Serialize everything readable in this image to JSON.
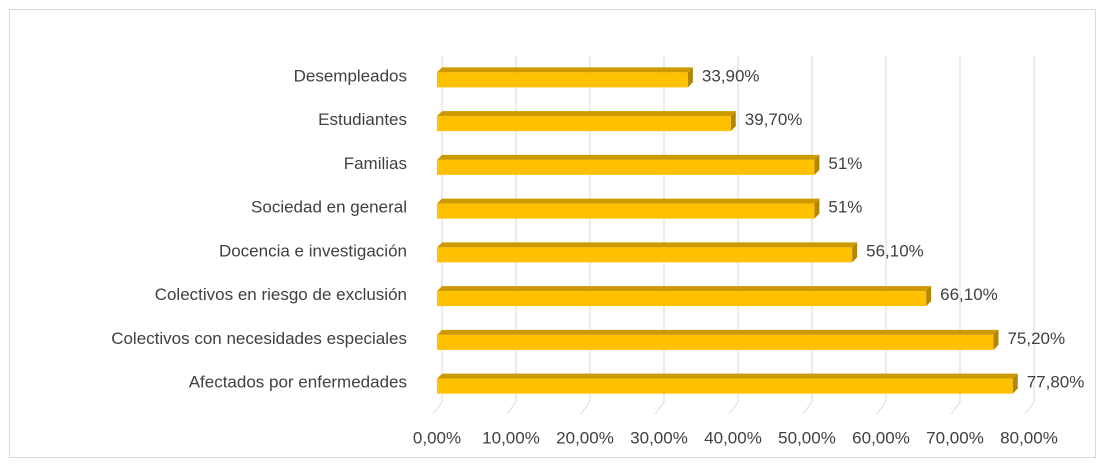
{
  "chart_data": {
    "type": "bar",
    "orientation": "horizontal",
    "categories": [
      "Desempleados",
      "Estudiantes",
      "Familias",
      "Sociedad en general",
      "Docencia e investigación",
      "Colectivos en riesgo de exclusión",
      "Colectivos con necesidades especiales",
      "Afectados por enfermedades"
    ],
    "values": [
      33.9,
      39.7,
      51,
      51,
      56.1,
      66.1,
      75.2,
      77.8
    ],
    "value_labels": [
      "33,90%",
      "39,70%",
      "51%",
      "51%",
      "56,10%",
      "66,10%",
      "75,20%",
      "77,80%"
    ],
    "color": "#ffc000",
    "xlim": [
      0,
      80
    ],
    "xticks": [
      {
        "value": 0,
        "label": "0,00%"
      },
      {
        "value": 10,
        "label": "10,00%"
      },
      {
        "value": 20,
        "label": "20,00%"
      },
      {
        "value": 30,
        "label": "30,00%"
      },
      {
        "value": 40,
        "label": "40,00%"
      },
      {
        "value": 50,
        "label": "50,00%"
      },
      {
        "value": 60,
        "label": "60,00%"
      },
      {
        "value": 70,
        "label": "70,00%"
      },
      {
        "value": 80,
        "label": "80,00%"
      }
    ],
    "grid": true
  }
}
